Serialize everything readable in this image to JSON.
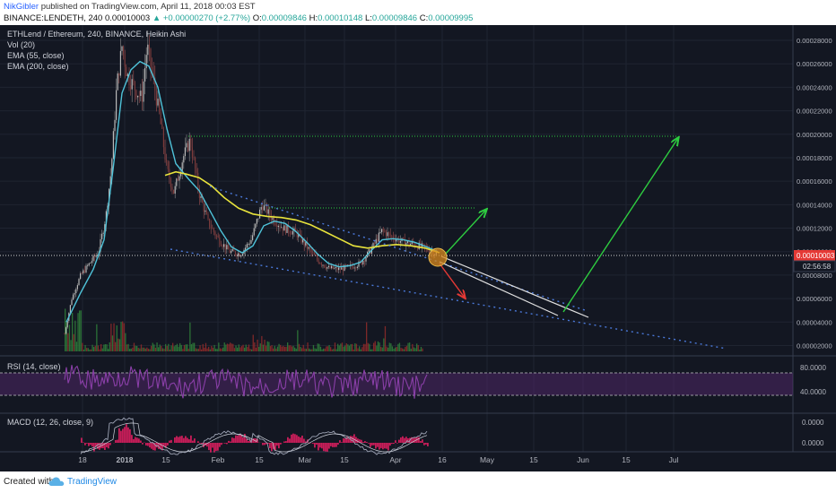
{
  "header": {
    "author": "NikGibler",
    "published_text": " published on TradingView.com, April 11, 2018 00:03 EST",
    "ohlc_line": {
      "symbol": "BINANCE:LENDETH, 240",
      "last": "0.00010003",
      "change_arrow": "▲",
      "change": "+0.00000270 (+2.77%)",
      "o_label": "O:",
      "o": "0.00009846",
      "h_label": "H:",
      "h": "0.00010148",
      "l_label": "L:",
      "l": "0.00009846",
      "c_label": "C:",
      "c": "0.00009995"
    }
  },
  "legend": {
    "title": "ETHLend / Ethereum, 240, BINANCE, Heikin Ashi",
    "vol": "Vol (20)",
    "ema55": "EMA (55, close)",
    "ema200": "EMA (200, close)"
  },
  "rsi_label": "RSI (14, close)",
  "macd_label": "MACD (12, 26, close, 9)",
  "footer": {
    "created": "Created with",
    "brand": "TradingView"
  },
  "colors": {
    "background": "#131722",
    "grid": "#1f2431",
    "ema55": "#4fc3d9",
    "ema200": "#e8e33c",
    "trendline": "#4a78d8",
    "target_green": "#2ecc40",
    "down_red": "#e53935",
    "rsi": "#8a3fa8",
    "macd_hist": "#e91e63",
    "price_tag": "#e53935"
  },
  "chart_data": {
    "type": "line",
    "title": "ETHLend / Ethereum, 240, BINANCE, Heikin Ashi",
    "x_ticks": [
      "18",
      "2018",
      "15",
      "Feb",
      "15",
      "Mar",
      "15",
      "Apr",
      "16",
      "May",
      "15",
      "Jun",
      "15",
      "Jul"
    ],
    "y_ticks": [
      "0.00002000",
      "0.00004000",
      "0.00006000",
      "0.00008000",
      "0.00010000",
      "0.00012000",
      "0.00014000",
      "0.00016000",
      "0.00018000",
      "0.00020000",
      "0.00022000",
      "0.00024000",
      "0.00026000",
      "0.00028000"
    ],
    "ylim": [
      1.5e-05,
      0.000293
    ],
    "last_price": "0.00010003",
    "countdown": "02:56:58",
    "series": [
      {
        "name": "EMA (55, close)",
        "values": [
          4e-05,
          7e-05,
          0.00012,
          0.00022,
          0.00026,
          0.00024,
          0.00019,
          0.00016,
          0.00014,
          0.00012,
          0.0001,
          0.00011,
          0.00012,
          0.000115,
          0.0001,
          8.8e-05,
          9e-05,
          0.000105,
          0.00011,
          0.000108,
          0.0001
        ]
      },
      {
        "name": "EMA (200, close)",
        "values": [
          0.000165,
          0.000165,
          0.00016,
          0.00014,
          0.000128,
          0.000127,
          0.000122,
          0.000112,
          0.000103,
          0.000101,
          0.000105,
          0.000104,
          0.0001
        ]
      }
    ],
    "annotations": {
      "target_1": 0.000141,
      "target_2": 0.000201,
      "current_price_line": 0.00010003
    },
    "rsi": {
      "label": "RSI (14, close)",
      "ticks": [
        "80.0000",
        "40.0000"
      ],
      "upper": 70,
      "lower": 30
    },
    "macd": {
      "label": "MACD (12, 26, close, 9)",
      "ticks": [
        "0.0000",
        "0.0000"
      ]
    }
  }
}
